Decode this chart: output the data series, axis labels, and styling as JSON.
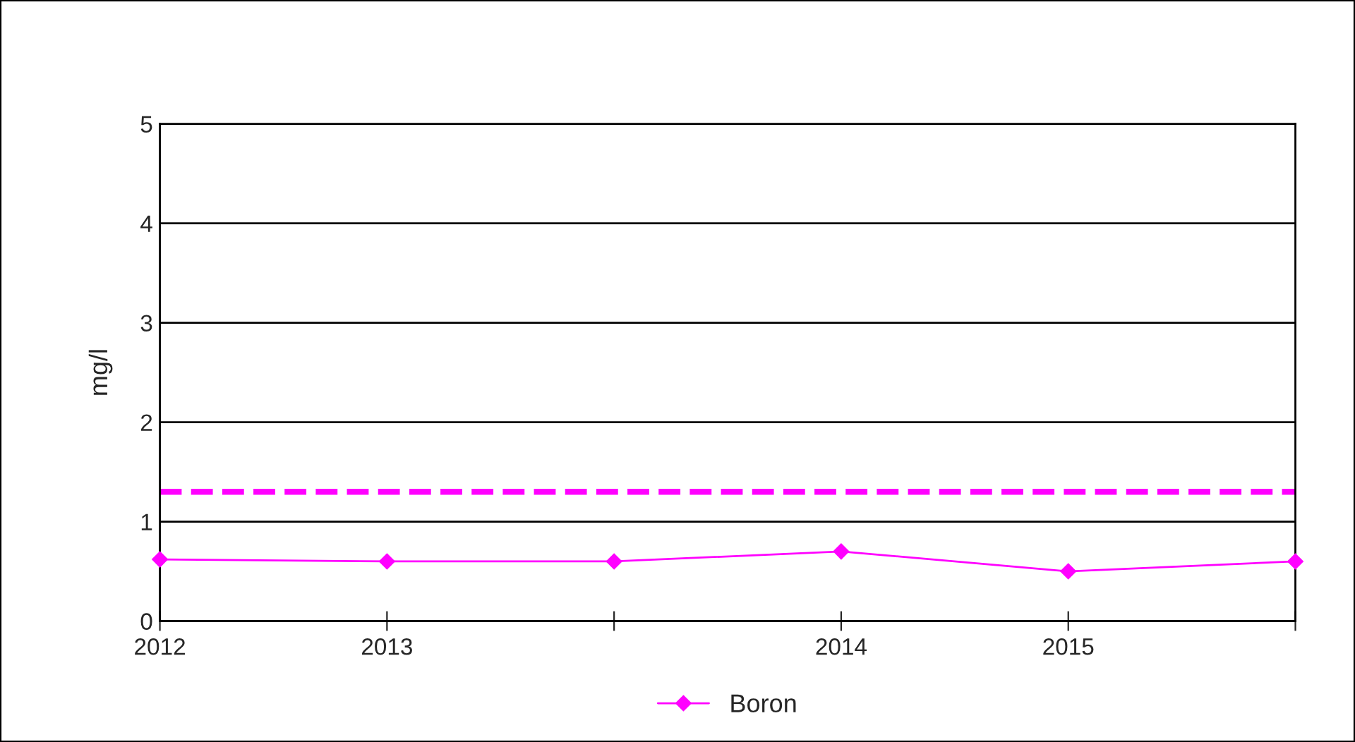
{
  "chart_data": {
    "type": "line",
    "ylabel": "mg/l",
    "categories": [
      "2012",
      "2013",
      null,
      "2014",
      "2015",
      null
    ],
    "series": [
      {
        "name": "Boron",
        "color": "#ff00ff",
        "values": [
          0.62,
          0.6,
          0.6,
          0.7,
          0.5,
          0.6
        ]
      }
    ],
    "ylim": [
      0,
      5
    ],
    "yticks": [
      0,
      1,
      2,
      3,
      4,
      5
    ],
    "grid": "y",
    "legend": "bottom",
    "marker": "diamond",
    "line_style": "solid",
    "ref_lines": [
      {
        "axis": "y",
        "value": 1.3,
        "color": "#ff00ff",
        "line_style": "dashed"
      }
    ]
  }
}
